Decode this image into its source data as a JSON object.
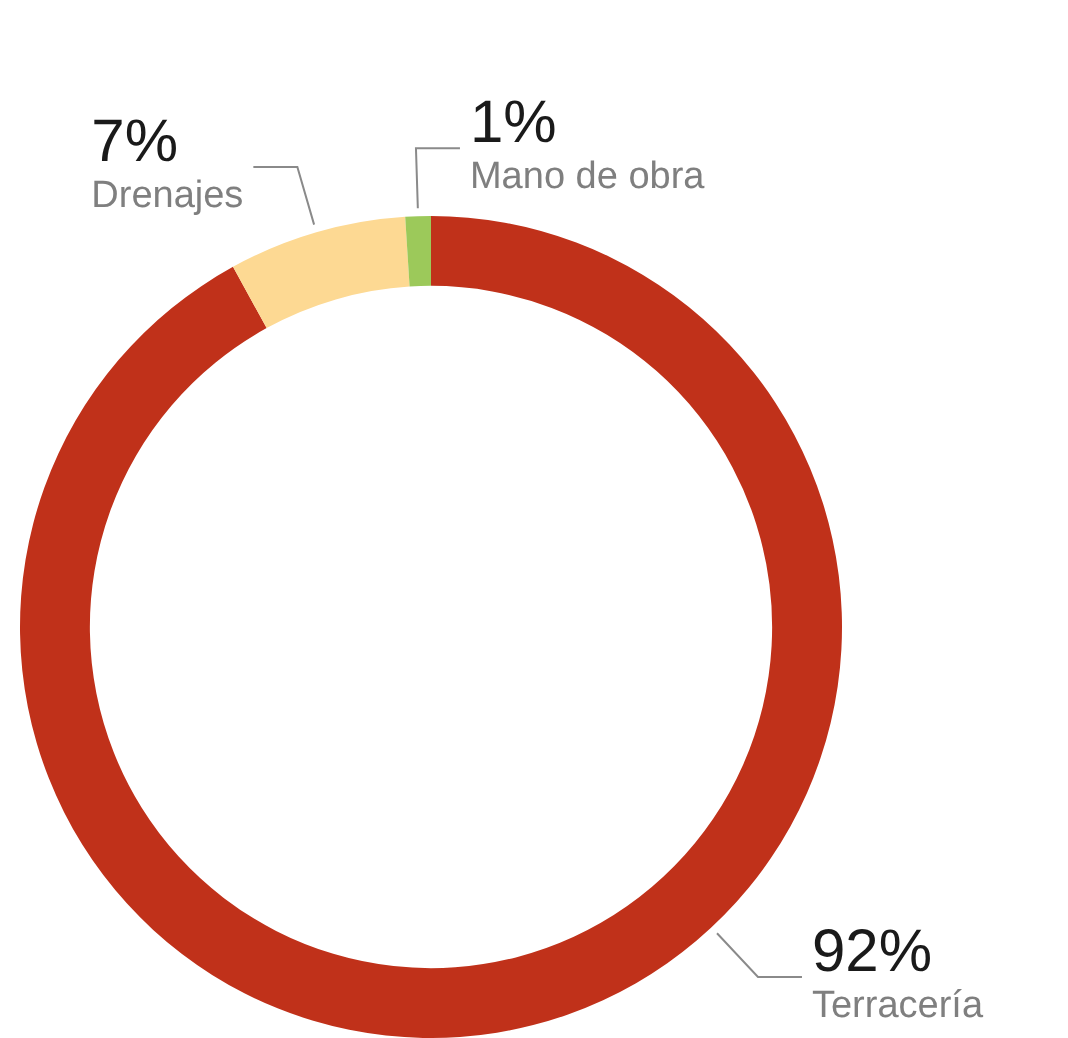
{
  "chart_data": {
    "type": "donut",
    "categories": [
      "Terracería",
      "Drenajes",
      "Mano de obra"
    ],
    "values": [
      92,
      7,
      1
    ],
    "value_labels": [
      "92%",
      "7%",
      "1%"
    ],
    "colors": [
      "#c0311a",
      "#fdd993",
      "#9cc95a"
    ],
    "legend": false
  }
}
